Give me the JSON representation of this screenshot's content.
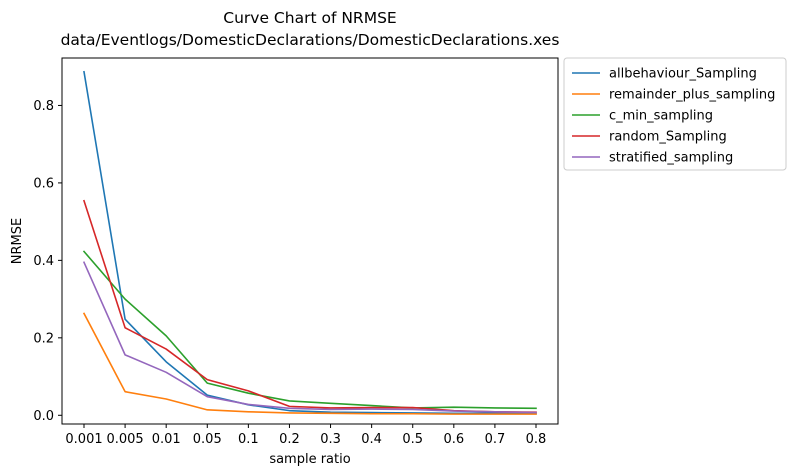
{
  "chart_data": {
    "type": "line",
    "title": "Curve Chart of NRMSE",
    "subtitle": "data/Eventlogs/DomesticDeclarations/DomesticDeclarations.xes",
    "xlabel": "sample ratio",
    "ylabel": "NRMSE",
    "categories": [
      "0.001",
      "0.005",
      "0.01",
      "0.05",
      "0.1",
      "0.2",
      "0.3",
      "0.4",
      "0.5",
      "0.6",
      "0.7",
      "0.8"
    ],
    "yticks": [
      "0.0",
      "0.2",
      "0.4",
      "0.6",
      "0.8"
    ],
    "ylim": [
      -0.0225,
      0.9225
    ],
    "grid": false,
    "legend_position": "outside upper right",
    "series": [
      {
        "name": "allbehaviour_Sampling",
        "color": "#1f77b4",
        "values": [
          0.887,
          0.248,
          0.138,
          0.052,
          0.027,
          0.012,
          0.008,
          0.007,
          0.006,
          0.005,
          0.005,
          0.004
        ]
      },
      {
        "name": "remainder_plus_sampling",
        "color": "#ff7f0e",
        "values": [
          0.263,
          0.061,
          0.042,
          0.014,
          0.009,
          0.006,
          0.005,
          0.004,
          0.004,
          0.003,
          0.003,
          0.003
        ]
      },
      {
        "name": "c_min_sampling",
        "color": "#2ca02c",
        "values": [
          0.423,
          0.3,
          0.205,
          0.083,
          0.057,
          0.037,
          0.031,
          0.025,
          0.019,
          0.021,
          0.019,
          0.018
        ]
      },
      {
        "name": "random_Sampling",
        "color": "#d62728",
        "values": [
          0.554,
          0.226,
          0.171,
          0.092,
          0.063,
          0.023,
          0.019,
          0.02,
          0.02,
          0.012,
          0.009,
          0.008
        ]
      },
      {
        "name": "stratified_sampling",
        "color": "#9467bd",
        "values": [
          0.395,
          0.156,
          0.111,
          0.048,
          0.028,
          0.018,
          0.015,
          0.016,
          0.015,
          0.011,
          0.009,
          0.007
        ]
      }
    ]
  }
}
